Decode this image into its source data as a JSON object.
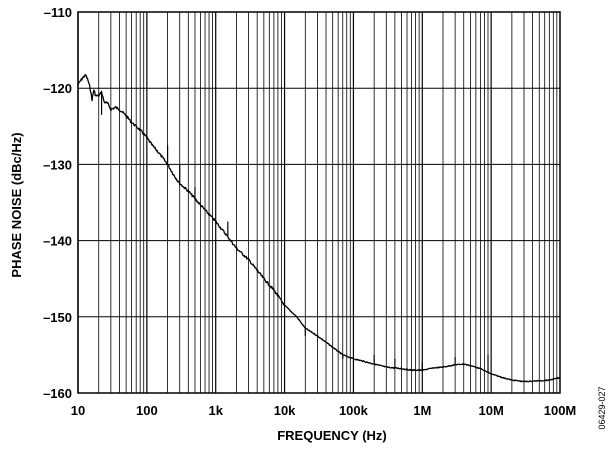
{
  "chart_data": {
    "type": "line",
    "xlabel": "FREQUENCY (Hz)",
    "ylabel": "PHASE NOISE (dBc/Hz)",
    "x_scale": "log",
    "xlim": [
      10,
      100000000
    ],
    "ylim": [
      -160,
      -110
    ],
    "grid": true,
    "x_ticks": [
      10,
      100,
      1000,
      10000,
      100000,
      1000000,
      10000000,
      100000000
    ],
    "x_tick_labels": [
      "10",
      "100",
      "1k",
      "10k",
      "100k",
      "1M",
      "10M",
      "100M"
    ],
    "y_ticks": [
      -110,
      -120,
      -130,
      -140,
      -150,
      -160
    ],
    "y_tick_labels": [
      "–110",
      "–120",
      "–130",
      "–140",
      "–150",
      "–160"
    ],
    "series": [
      {
        "color": "#000000",
        "points": [
          [
            10,
            -119.5
          ],
          [
            12,
            -118.5
          ],
          [
            13,
            -118.3
          ],
          [
            14,
            -119.0
          ],
          [
            15,
            -120.0
          ],
          [
            16,
            -121.5
          ],
          [
            17,
            -120.2
          ],
          [
            18,
            -121.0
          ],
          [
            20,
            -121.0
          ],
          [
            22,
            -120.5
          ],
          [
            24,
            -121.8
          ],
          [
            27,
            -122.0
          ],
          [
            30,
            -122.8
          ],
          [
            35,
            -122.5
          ],
          [
            40,
            -122.8
          ],
          [
            50,
            -123.6
          ],
          [
            60,
            -124.5
          ],
          [
            70,
            -125.0
          ],
          [
            80,
            -125.5
          ],
          [
            90,
            -126.0
          ],
          [
            100,
            -126.5
          ],
          [
            120,
            -127.5
          ],
          [
            150,
            -128.5
          ],
          [
            200,
            -130.0
          ],
          [
            250,
            -131.5
          ],
          [
            300,
            -132.5
          ],
          [
            400,
            -133.5
          ],
          [
            500,
            -134.5
          ],
          [
            700,
            -136.0
          ],
          [
            1000,
            -137.5
          ],
          [
            1500,
            -139.5
          ],
          [
            2000,
            -141.0
          ],
          [
            3000,
            -142.5
          ],
          [
            5000,
            -145.0
          ],
          [
            7000,
            -146.5
          ],
          [
            10000,
            -148.5
          ],
          [
            15000,
            -150.0
          ],
          [
            20000,
            -151.5
          ],
          [
            30000,
            -152.5
          ],
          [
            50000,
            -154.0
          ],
          [
            70000,
            -155.0
          ],
          [
            100000,
            -155.5
          ],
          [
            200000,
            -156.2
          ],
          [
            300000,
            -156.6
          ],
          [
            500000,
            -156.8
          ],
          [
            700000,
            -157.0
          ],
          [
            1000000,
            -157.0
          ],
          [
            1500000,
            -156.7
          ],
          [
            2000000,
            -156.6
          ],
          [
            3000000,
            -156.3
          ],
          [
            4000000,
            -156.2
          ],
          [
            5000000,
            -156.4
          ],
          [
            7000000,
            -156.8
          ],
          [
            10000000,
            -157.5
          ],
          [
            15000000,
            -158.0
          ],
          [
            20000000,
            -158.3
          ],
          [
            30000000,
            -158.5
          ],
          [
            50000000,
            -158.4
          ],
          [
            70000000,
            -158.3
          ],
          [
            100000000,
            -158.0
          ]
        ],
        "spurs": [
          [
            22,
            -123.5
          ],
          [
            200,
            -127.5
          ],
          [
            300,
            -130.0
          ],
          [
            500,
            -133.0
          ],
          [
            1500,
            -137.5
          ],
          [
            20000,
            -152.5
          ],
          [
            70000,
            -155.5
          ],
          [
            200000,
            -155.0
          ],
          [
            400000,
            -155.5
          ],
          [
            1000000,
            -156.0
          ],
          [
            3000000,
            -155.3
          ],
          [
            9000000,
            -155.0
          ]
        ]
      }
    ],
    "figure_id": "06429-027"
  }
}
